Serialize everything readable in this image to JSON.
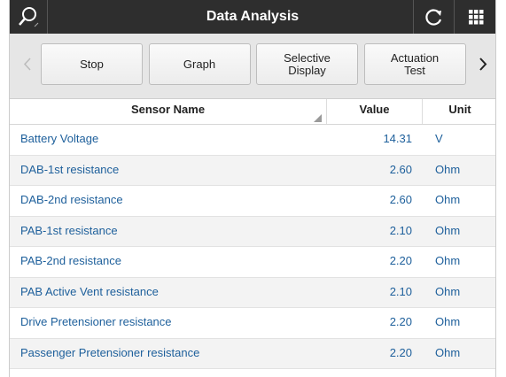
{
  "header": {
    "title": "Data Analysis"
  },
  "toolbar": {
    "buttons": [
      "Stop",
      "Graph",
      "Selective Display",
      "Actuation Test"
    ]
  },
  "table": {
    "columns": [
      "Sensor Name",
      "Value",
      "Unit"
    ],
    "rows": [
      [
        "Battery Voltage",
        "14.31",
        "V"
      ],
      [
        "DAB-1st resistance",
        "2.60",
        "Ohm"
      ],
      [
        "DAB-2nd resistance",
        "2.60",
        "Ohm"
      ],
      [
        "PAB-1st resistance",
        "2.10",
        "Ohm"
      ],
      [
        "PAB-2nd resistance",
        "2.20",
        "Ohm"
      ],
      [
        "PAB Active Vent resistance",
        "2.10",
        "Ohm"
      ],
      [
        "Drive Pretensioner resistance",
        "2.20",
        "Ohm"
      ],
      [
        "Passenger Pretensioner resistance",
        "2.20",
        "Ohm"
      ]
    ]
  }
}
